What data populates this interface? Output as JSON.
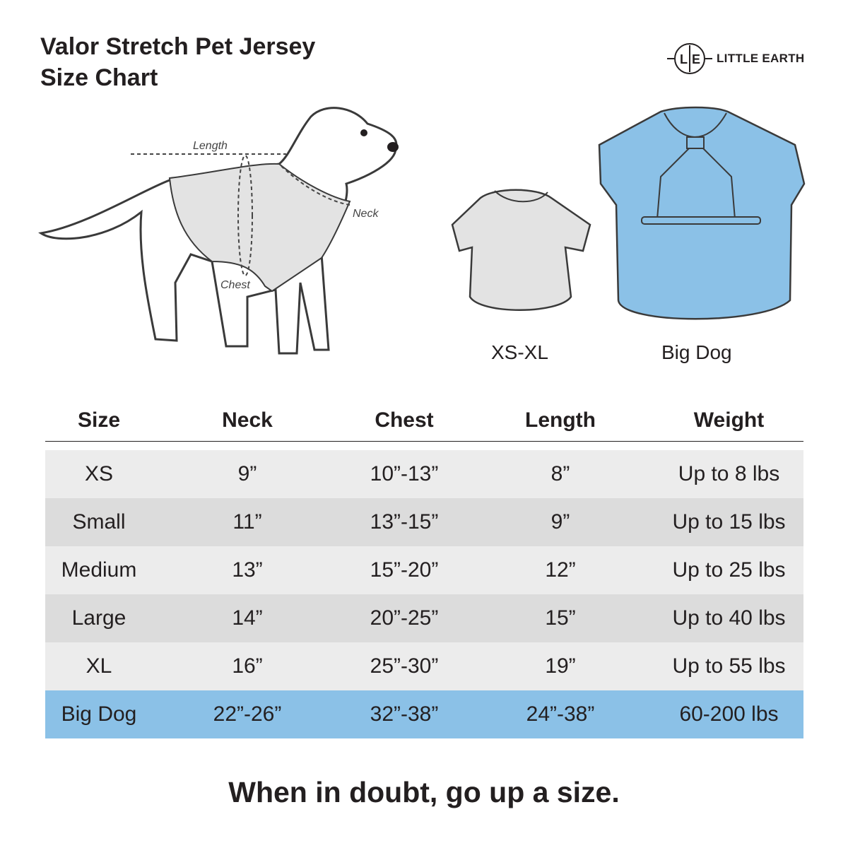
{
  "title": {
    "line1": "Valor Stretch Pet Jersey",
    "line2": "Size Chart"
  },
  "logo": {
    "mark": "L|E",
    "brand": "LITTLE EARTH"
  },
  "diagram": {
    "length_label": "Length",
    "neck_label": "Neck",
    "chest_label": "Chest"
  },
  "jerseys": {
    "small_caption": "XS-XL",
    "big_caption": "Big Dog"
  },
  "colors": {
    "row_light": "#ececec",
    "row_dark": "#dcdcdc",
    "big_dog": "#8bc1e7",
    "jersey_gray": "#e3e3e3"
  },
  "table": {
    "headers": [
      "Size",
      "Neck",
      "Chest",
      "Length",
      "Weight"
    ],
    "rows": [
      [
        "XS",
        "9”",
        "10”-13”",
        "8”",
        "Up to 8 lbs"
      ],
      [
        "Small",
        "11”",
        "13”-15”",
        "9”",
        "Up to 15 lbs"
      ],
      [
        "Medium",
        "13”",
        "15”-20”",
        "12”",
        "Up to 25 lbs"
      ],
      [
        "Large",
        "14”",
        "20”-25”",
        "15”",
        "Up to 40 lbs"
      ],
      [
        "XL",
        "16”",
        "25”-30”",
        "19”",
        "Up to 55 lbs"
      ],
      [
        "Big Dog",
        "22”-26”",
        "32”-38”",
        "24”-38”",
        "60-200 lbs"
      ]
    ]
  },
  "footer": "When in doubt, go up a size."
}
